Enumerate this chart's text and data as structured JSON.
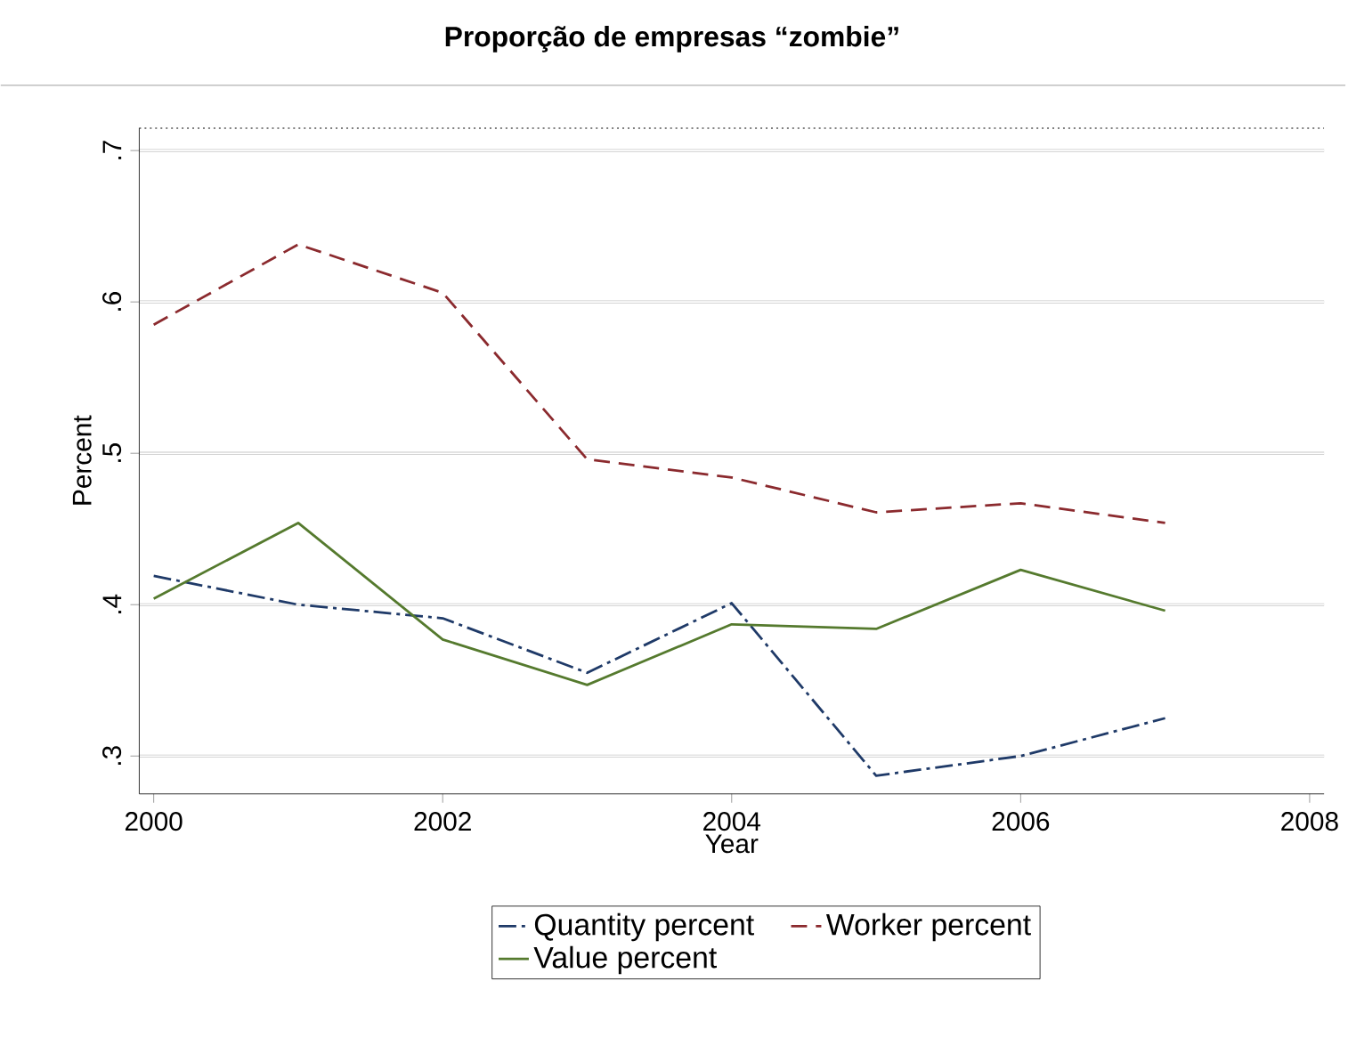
{
  "chart_data": {
    "type": "line",
    "title": "Proporção de empresas “zombie”",
    "xlabel": "Year",
    "ylabel": "Percent",
    "x": [
      2000,
      2001,
      2002,
      2003,
      2004,
      2005,
      2006,
      2007
    ],
    "series": [
      {
        "name": "Quantity percent",
        "color": "#1f3a68",
        "line_style": "dashdot",
        "values": [
          0.419,
          0.4,
          0.391,
          0.355,
          0.401,
          0.287,
          0.3,
          0.325
        ]
      },
      {
        "name": "Worker percent",
        "color": "#8b2a2e",
        "line_style": "dashed",
        "values": [
          0.585,
          0.638,
          0.606,
          0.496,
          0.484,
          0.461,
          0.467,
          0.454
        ]
      },
      {
        "name": "Value percent",
        "color": "#557a2e",
        "line_style": "solid",
        "values": [
          0.404,
          0.454,
          0.377,
          0.347,
          0.387,
          0.384,
          0.423,
          0.396
        ]
      }
    ],
    "xlim": [
      1999.9,
      2008.1
    ],
    "ylim": [
      0.275,
      0.715
    ],
    "xticks": [
      2000,
      2002,
      2004,
      2006,
      2008
    ],
    "yticks": [
      {
        "value": 0.3,
        "label": ".3"
      },
      {
        "value": 0.4,
        "label": ".4"
      },
      {
        "value": 0.5,
        "label": ".5"
      },
      {
        "value": 0.6,
        "label": ".6"
      },
      {
        "value": 0.7,
        "label": ".7"
      }
    ],
    "grid": "y",
    "legend": "bottom",
    "marker": "none"
  }
}
